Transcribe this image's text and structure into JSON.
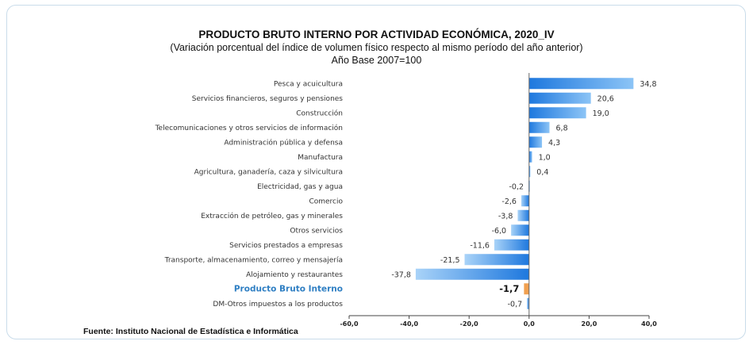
{
  "header": {
    "title": "PRODUCTO BRUTO INTERNO POR ACTIVIDAD ECONÓMICA, 2020_IV",
    "subtitle": "(Variación porcentual del índice de volumen físico respecto al mismo período del año anterior)",
    "base": "Año Base 2007=100"
  },
  "footer": {
    "source": "Fuente: Instituto Nacional de Estadística e Informática"
  },
  "colors": {
    "bar": "#3a8ee6",
    "bar_light": "#9cc9f5",
    "highlight_bar": "#f0a050",
    "highlight_text": "#2f7fc3"
  },
  "chart_data": {
    "type": "bar",
    "orientation": "horizontal",
    "categories": [
      "Pesca y acuicultura",
      "Servicios financieros, seguros y pensiones",
      "Construcción",
      "Telecomunicaciones y otros servicios de información",
      "Administración pública y defensa",
      "Manufactura",
      "Agricultura, ganadería, caza y silvicultura",
      "Electricidad, gas y agua",
      "Comercio",
      "Extracción de petróleo, gas y minerales",
      "Otros servicios",
      "Servicios prestados a empresas",
      "Transporte, almacenamiento, correo y mensajería",
      "Alojamiento y restaurantes",
      "Producto Bruto Interno",
      "DM-Otros impuestos a los productos"
    ],
    "values": [
      34.8,
      20.6,
      19.0,
      6.8,
      4.3,
      1.0,
      0.4,
      -0.2,
      -2.6,
      -3.8,
      -6.0,
      -11.6,
      -21.5,
      -37.8,
      -1.7,
      -0.7
    ],
    "value_labels": [
      "34,8",
      "20,6",
      "19,0",
      "6,8",
      "4,3",
      "1,0",
      "0,4",
      "-0,2",
      "-2,6",
      "-3,8",
      "-6,0",
      "-11,6",
      "-21,5",
      "-37,8",
      "-1,7",
      "-0,7"
    ],
    "highlight_index": 14,
    "xlim": [
      -60,
      40
    ],
    "xticks": [
      -60,
      -40,
      -20,
      0,
      20,
      40
    ],
    "xtick_labels": [
      "-60,0",
      "-40,0",
      "-20,0",
      "0,0",
      "20,0",
      "40,0"
    ],
    "title": "PRODUCTO BRUTO INTERNO POR ACTIVIDAD ECONÓMICA, 2020_IV",
    "xlabel": "",
    "ylabel": "",
    "grid": false,
    "legend": "none"
  }
}
